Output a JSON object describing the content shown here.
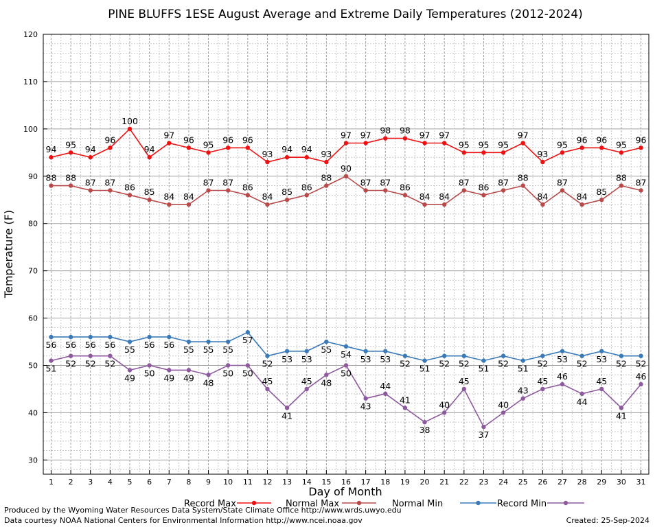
{
  "chart_data": {
    "type": "line",
    "title": "PINE BLUFFS 1ESE August Average and Extreme Daily Temperatures (2012-2024)",
    "xlabel": "Day of Month",
    "ylabel": "Temperature (F)",
    "x": [
      1,
      2,
      3,
      4,
      5,
      6,
      7,
      8,
      9,
      10,
      11,
      12,
      13,
      14,
      15,
      16,
      17,
      18,
      19,
      20,
      21,
      22,
      23,
      24,
      25,
      26,
      27,
      28,
      29,
      30,
      31
    ],
    "xlim": [
      0.6,
      31.4
    ],
    "ylim": [
      27,
      120
    ],
    "yticks": [
      30,
      40,
      50,
      60,
      70,
      80,
      90,
      100,
      110,
      120
    ],
    "grid": true,
    "legend_position": "bottom",
    "series": [
      {
        "name": "Record Max",
        "color": "#ee1111",
        "values": [
          94,
          95,
          94,
          96,
          100,
          94,
          97,
          96,
          95,
          96,
          96,
          93,
          94,
          94,
          93,
          97,
          97,
          98,
          98,
          97,
          97,
          95,
          95,
          95,
          97,
          93,
          95,
          96,
          96,
          95,
          96
        ]
      },
      {
        "name": "Normal Max",
        "color": "#b84a4a",
        "values": [
          88,
          88,
          87,
          87,
          86,
          85,
          84,
          84,
          87,
          87,
          86,
          84,
          85,
          86,
          88,
          90,
          87,
          87,
          86,
          84,
          84,
          87,
          86,
          87,
          88,
          84,
          87,
          84,
          85,
          88,
          87
        ]
      },
      {
        "name": "Normal Min",
        "color": "#3a7ab8",
        "values": [
          56,
          56,
          56,
          56,
          55,
          56,
          56,
          55,
          55,
          55,
          57,
          52,
          53,
          53,
          55,
          54,
          53,
          53,
          52,
          51,
          52,
          52,
          51,
          52,
          51,
          52,
          53,
          52,
          53,
          52,
          52
        ]
      },
      {
        "name": "Record Min",
        "color": "#8e5a9e",
        "values": [
          51,
          52,
          52,
          52,
          49,
          50,
          49,
          49,
          48,
          50,
          50,
          45,
          41,
          45,
          48,
          50,
          43,
          44,
          41,
          38,
          40,
          45,
          37,
          40,
          43,
          45,
          46,
          44,
          45,
          41,
          46
        ]
      }
    ]
  },
  "footer": {
    "produced_by": "Produced by the Wyoming Water Resources Data System/State Climate Office http://www.wrds.uwyo.edu",
    "courtesy": "Data courtesy NOAA National Centers for Environmental Information http://www.ncei.noaa.gov",
    "created": "Created:  25-Sep-2024"
  }
}
